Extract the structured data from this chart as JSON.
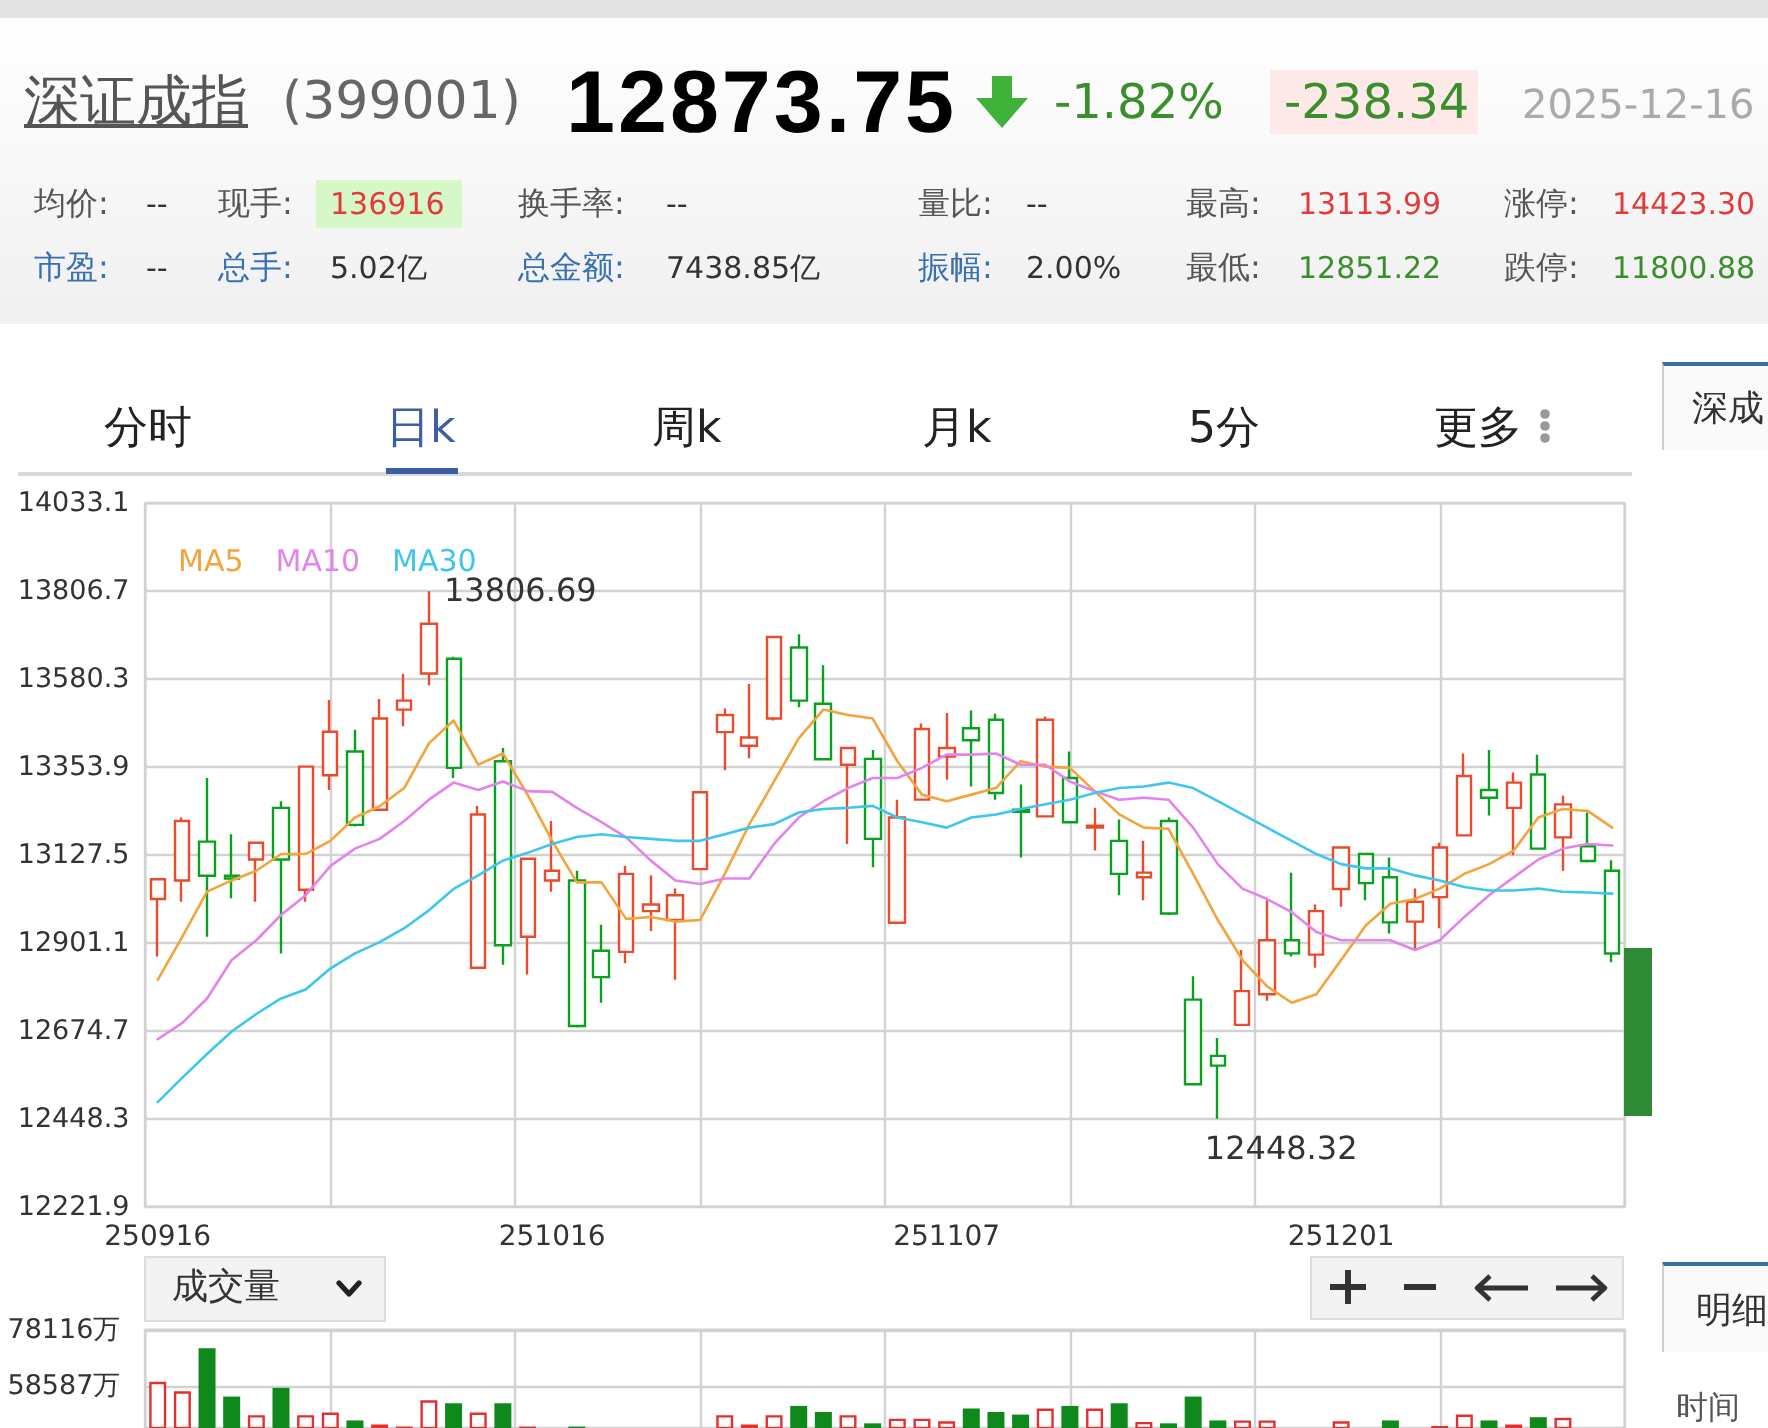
{
  "chart_data": [
    {
      "type": "other",
      "title": "深证成指",
      "subtitle": "(399001)",
      "annotations": [
        "12873.75",
        "-1.82%",
        "-238.34",
        "2025-12-16",
        "均价: --",
        "现手: 136916",
        "换手率: --",
        "量比: --",
        "最高: 13113.99",
        "涨停: 14423.30",
        "市盈: --",
        "总手: 5.02亿",
        "总金额: 7438.85亿",
        "振幅: 2.00%",
        "最低: 12851.22",
        "跌停: 11800.88",
        "分时",
        "日k",
        "周k",
        "月k",
        "5分",
        "更多"
      ]
    },
    {
      "type": "candlestick",
      "categories": [
        "250916",
        null,
        null,
        null,
        null,
        null,
        null,
        null,
        null,
        null,
        null,
        null,
        null,
        null,
        null,
        null,
        "251016",
        null,
        null,
        null,
        null,
        null,
        null,
        null,
        null,
        null,
        null,
        null,
        null,
        null,
        null,
        null,
        "251107",
        null,
        null,
        null,
        null,
        null,
        null,
        null,
        null,
        null,
        null,
        null,
        null,
        null,
        null,
        null,
        "251201",
        null,
        null,
        null,
        null,
        null,
        null,
        null,
        null,
        null,
        null,
        null
      ],
      "ohlc": [
        [
          13014,
          13068,
          12866,
          13065
        ],
        [
          13062,
          13224,
          13007,
          13215
        ],
        [
          13162,
          13326,
          12917,
          13074
        ],
        [
          13074,
          13181,
          13016,
          13067
        ],
        [
          13116,
          13160,
          13007,
          13159
        ],
        [
          13249,
          13266,
          12874,
          13116
        ],
        [
          13038,
          13357,
          13007,
          13355
        ],
        [
          13333,
          13527,
          13295,
          13445
        ],
        [
          13394,
          13450,
          13201,
          13205
        ],
        [
          13244,
          13529,
          13241,
          13479
        ],
        [
          13502,
          13594,
          13459,
          13525
        ],
        [
          13595,
          13806.69,
          13565,
          13723
        ],
        [
          13633,
          13638,
          13326,
          13352
        ],
        [
          12837,
          13254,
          12834,
          13232
        ],
        [
          13369,
          13403,
          12845,
          12895
        ],
        [
          12917,
          13120,
          12820,
          13118
        ],
        [
          13062,
          13215,
          13033,
          13087
        ],
        [
          13062,
          13087,
          12683,
          12687
        ],
        [
          12881,
          12948,
          12747,
          12813
        ],
        [
          12878,
          13099,
          12849,
          13079
        ],
        [
          12983,
          13075,
          12932,
          13000
        ],
        [
          12960,
          13041,
          12806,
          13024
        ],
        [
          13091,
          13290,
          13089,
          13289
        ],
        [
          13444,
          13505,
          13346,
          13488
        ],
        [
          13409,
          13568,
          13377,
          13430
        ],
        [
          13479,
          13692,
          13474,
          13689
        ],
        [
          13662,
          13696,
          13508,
          13525
        ],
        [
          13517,
          13616,
          13372,
          13374
        ],
        [
          13360,
          13404,
          13156,
          13403
        ],
        [
          13375,
          13398,
          13096,
          13169
        ],
        [
          12953,
          13270,
          12951,
          13224
        ],
        [
          13270,
          13466,
          13268,
          13452
        ],
        [
          13381,
          13493,
          13321,
          13403
        ],
        [
          13454,
          13500,
          13304,
          13423
        ],
        [
          13476,
          13491,
          13270,
          13287
        ],
        [
          13244,
          13309,
          13121,
          13239
        ],
        [
          13227,
          13484,
          13224,
          13476
        ],
        [
          13326,
          13394,
          13210,
          13212
        ],
        [
          13198,
          13249,
          13139,
          13203
        ],
        [
          13164,
          13219,
          13024,
          13079
        ],
        [
          13070,
          13164,
          13011,
          13082
        ],
        [
          13215,
          13224,
          12973,
          12977
        ],
        [
          12755,
          12815,
          12535,
          12537
        ],
        [
          12610,
          12656,
          12448.32,
          12585
        ],
        [
          12690,
          12883,
          12689,
          12777
        ],
        [
          12769,
          13011,
          12752,
          12908
        ],
        [
          12908,
          13082,
          12866,
          12874
        ],
        [
          12871,
          13000,
          12837,
          12983
        ],
        [
          13040,
          13149,
          12994,
          13147
        ],
        [
          13130,
          13131,
          13011,
          13055
        ],
        [
          13070,
          13121,
          12925,
          12954
        ],
        [
          12956,
          13041,
          12883,
          13007
        ],
        [
          13019,
          13159,
          12939,
          13147
        ],
        [
          13178,
          13389,
          13176,
          13331
        ],
        [
          13295,
          13398,
          13229,
          13275
        ],
        [
          13249,
          13340,
          13127,
          13314
        ],
        [
          13335,
          13386,
          13142,
          13144
        ],
        [
          13173,
          13280,
          13087,
          13258
        ],
        [
          13150,
          13237,
          13108,
          13112
        ],
        [
          13087,
          13113.99,
          12851.22,
          12873.75
        ]
      ],
      "colors": [
        "#e94b2d",
        "#e94b2d",
        "#0aa11e",
        "#0aa11e",
        "#e94b2d",
        "#0aa11e",
        "#e94b2d",
        "#e94b2d",
        "#0aa11e",
        "#e94b2d",
        "#e94b2d",
        "#e94b2d",
        "#0aa11e",
        "#e94b2d",
        "#0aa11e",
        "#e94b2d",
        "#e94b2d",
        "#0aa11e",
        "#0aa11e",
        "#e94b2d",
        "#e94b2d",
        "#e94b2d",
        "#e94b2d",
        "#e94b2d",
        "#e94b2d",
        "#e94b2d",
        "#0aa11e",
        "#0aa11e",
        "#e94b2d",
        "#0aa11e",
        "#e94b2d",
        "#e94b2d",
        "#e94b2d",
        "#0aa11e",
        "#0aa11e",
        "#0aa11e",
        "#e94b2d",
        "#0aa11e",
        "#e94b2d",
        "#0aa11e",
        "#e94b2d",
        "#0aa11e",
        "#0aa11e",
        "#0aa11e",
        "#e94b2d",
        "#e94b2d",
        "#0aa11e",
        "#e94b2d",
        "#e94b2d",
        "#0aa11e",
        "#0aa11e",
        "#e94b2d",
        "#e94b2d",
        "#e94b2d",
        "#0aa11e",
        "#e94b2d",
        "#0aa11e",
        "#e94b2d",
        "#0aa11e",
        "#0aa11e"
      ],
      "series": [
        {
          "name": "MA5",
          "type": "line",
          "color": "#f4a43c",
          "values": [
            12806,
            12917,
            13033,
            13062,
            13087,
            13130,
            13130,
            13164,
            13224,
            13253,
            13300,
            13415,
            13474,
            13360,
            13389,
            13283,
            13164,
            13057,
            13057,
            12963,
            12968,
            12956,
            12960,
            13079,
            13207,
            13317,
            13428,
            13502,
            13488,
            13479,
            13369,
            13283,
            13266,
            13283,
            13300,
            13369,
            13355,
            13352,
            13292,
            13232,
            13198,
            13195,
            13079,
            12960,
            12857,
            12789,
            12747,
            12769,
            12857,
            12946,
            13002,
            13014,
            13041,
            13079,
            13104,
            13139,
            13224,
            13246,
            13241,
            13198
          ]
        },
        {
          "name": "MA10",
          "type": "line",
          "color": "#e383ec",
          "values": [
            12653,
            12695,
            12758,
            12857,
            12908,
            12973,
            13024,
            13099,
            13144,
            13169,
            13215,
            13270,
            13314,
            13295,
            13317,
            13292,
            13290,
            13249,
            13212,
            13173,
            13113,
            13062,
            13053,
            13067,
            13067,
            13156,
            13224,
            13266,
            13300,
            13326,
            13326,
            13352,
            13386,
            13386,
            13389,
            13360,
            13360,
            13317,
            13292,
            13270,
            13275,
            13270,
            13198,
            13104,
            13041,
            13014,
            12980,
            12929,
            12908,
            12908,
            12908,
            12883,
            12908,
            12968,
            13024,
            13070,
            13116,
            13144,
            13156,
            13152
          ]
        },
        {
          "name": "MA30",
          "type": "line",
          "color": "#3ec6ee",
          "values": [
            12491,
            12554,
            12615,
            12673,
            12718,
            12758,
            12781,
            12835,
            12874,
            12903,
            12939,
            12985,
            13040,
            13075,
            13113,
            13133,
            13156,
            13174,
            13181,
            13174,
            13169,
            13164,
            13164,
            13181,
            13198,
            13207,
            13237,
            13246,
            13249,
            13254,
            13224,
            13212,
            13198,
            13224,
            13232,
            13246,
            13258,
            13270,
            13287,
            13300,
            13304,
            13314,
            13300,
            13266,
            13232,
            13198,
            13164,
            13130,
            13104,
            13093,
            13093,
            13075,
            13062,
            13045,
            13036,
            13036,
            13041,
            13033,
            13031,
            13028
          ]
        }
      ],
      "ylim": [
        12221.9,
        14033.1
      ],
      "yticks": [
        12221.9,
        12448.3,
        12674.7,
        12901.1,
        13127.5,
        13353.9,
        13580.3,
        13806.7,
        14033.1
      ],
      "grid": true,
      "legend": "top left",
      "annotations": [
        "13806.69",
        "12448.32"
      ]
    },
    {
      "type": "bar",
      "title": "成交量",
      "categories": [
        null,
        null,
        null,
        null,
        null,
        null,
        null,
        null,
        null,
        null,
        null,
        null,
        null,
        null,
        null,
        null,
        null,
        null,
        null,
        null,
        null,
        null,
        null,
        null,
        null,
        null,
        null,
        null,
        null,
        null,
        null,
        null,
        null,
        null,
        null,
        null,
        null,
        null,
        null,
        null,
        null,
        null,
        null,
        null,
        null,
        null,
        null,
        null,
        null,
        null,
        null,
        null,
        null,
        null,
        null,
        null,
        null,
        null,
        null,
        null
      ],
      "values": [
        60200,
        56900,
        71700,
        55100,
        48700,
        58100,
        48700,
        49600,
        46900,
        45500,
        44800,
        53800,
        52800,
        49600,
        52800,
        44800,
        null,
        44800,
        null,
        null,
        null,
        null,
        null,
        48700,
        45500,
        48700,
        51900,
        49800,
        48700,
        45900,
        47500,
        47500,
        46600,
        51000,
        49800,
        48900,
        51000,
        51900,
        51000,
        52800,
        46400,
        45900,
        55100,
        46900,
        46900,
        46900,
        null,
        null,
        46600,
        null,
        46900,
        null,
        45000,
        48900,
        46900,
        45500,
        48000,
        47800,
        null,
        null
      ],
      "colors": [
        "#e03030",
        "#e03030",
        "#10891c",
        "#10891c",
        "#e03030",
        "#10891c",
        "#e03030",
        "#e03030",
        "#10891c",
        "#e03030",
        "#e03030",
        "#e03030",
        "#10891c",
        "#e03030",
        "#10891c",
        "#e03030",
        null,
        "#10891c",
        null,
        null,
        null,
        null,
        null,
        "#e03030",
        "#e03030",
        "#e03030",
        "#10891c",
        "#10891c",
        "#e03030",
        "#10891c",
        "#e03030",
        "#e03030",
        "#e03030",
        "#10891c",
        "#10891c",
        "#10891c",
        "#e03030",
        "#10891c",
        "#e03030",
        "#10891c",
        "#e03030",
        "#10891c",
        "#10891c",
        "#10891c",
        "#e03030",
        "#e03030",
        null,
        null,
        "#e03030",
        null,
        "#10891c",
        null,
        "#e03030",
        "#e03030",
        "#10891c",
        "#e03030",
        "#10891c",
        "#e03030",
        null,
        null
      ],
      "ylim": [
        44300,
        78116
      ],
      "yticks": [
        {
          "value": 58587,
          "label": "58587万"
        },
        {
          "value": 78116,
          "label": "78116万"
        }
      ],
      "grid": true
    },
    {
      "type": "other",
      "annotations": [
        "深成",
        "明细",
        "时间"
      ]
    }
  ]
}
